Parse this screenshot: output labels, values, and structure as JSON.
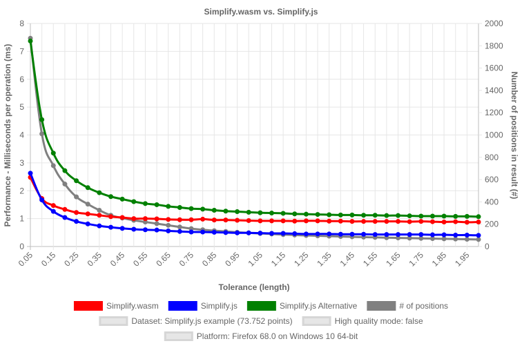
{
  "chart_data": {
    "type": "line",
    "title": "Simplify.wasm vs. Simplify.js",
    "xlabel": "Tolerance (length)",
    "ylabel_left": "Performance - Milliseconds per operation (ms)",
    "ylabel_right": "Number of positions in result (#)",
    "ylim_left": [
      0,
      8
    ],
    "ylim_right": [
      0,
      2000
    ],
    "yticks_left": [
      "0",
      "1",
      "2",
      "3",
      "4",
      "5",
      "6",
      "7",
      "8"
    ],
    "yticks_right": [
      "0",
      "200",
      "400",
      "600",
      "800",
      "1000",
      "1200",
      "1400",
      "1600",
      "1800",
      "2000"
    ],
    "x": [
      0.05,
      0.1,
      0.15,
      0.2,
      0.25,
      0.3,
      0.35,
      0.4,
      0.45,
      0.5,
      0.55,
      0.6,
      0.65,
      0.7,
      0.75,
      0.8,
      0.85,
      0.9,
      0.95,
      1.0,
      1.05,
      1.1,
      1.15,
      1.2,
      1.25,
      1.3,
      1.35,
      1.4,
      1.45,
      1.5,
      1.55,
      1.6,
      1.65,
      1.7,
      1.75,
      1.8,
      1.85,
      1.9,
      1.95,
      2.0
    ],
    "xtick_labels": [
      "0.05",
      "0.15",
      "0.25",
      "0.35",
      "0.45",
      "0.55",
      "0.65",
      "0.75",
      "0.85",
      "0.95",
      "1.05",
      "1.15",
      "1.25",
      "1.35",
      "1.45",
      "1.55",
      "1.65",
      "1.75",
      "1.85",
      "1.95"
    ],
    "grid": true,
    "legend_position": "bottom",
    "series": [
      {
        "name": "Simplify.wasm",
        "color": "#ff0000",
        "axis": "left",
        "values": [
          2.48,
          1.72,
          1.47,
          1.33,
          1.22,
          1.17,
          1.12,
          1.07,
          1.04,
          1.0,
          1.0,
          0.99,
          0.97,
          0.96,
          0.96,
          0.98,
          0.95,
          0.95,
          0.94,
          0.93,
          0.92,
          0.92,
          0.92,
          0.91,
          0.92,
          0.92,
          0.91,
          0.91,
          0.9,
          0.9,
          0.9,
          0.9,
          0.9,
          0.89,
          0.9,
          0.89,
          0.88,
          0.89,
          0.87,
          0.88
        ]
      },
      {
        "name": "Simplify.js",
        "color": "#0000ff",
        "axis": "left",
        "values": [
          2.63,
          1.67,
          1.26,
          1.04,
          0.9,
          0.81,
          0.74,
          0.69,
          0.65,
          0.62,
          0.6,
          0.59,
          0.56,
          0.54,
          0.52,
          0.52,
          0.51,
          0.5,
          0.49,
          0.49,
          0.48,
          0.47,
          0.47,
          0.46,
          0.45,
          0.45,
          0.45,
          0.44,
          0.44,
          0.44,
          0.43,
          0.43,
          0.43,
          0.43,
          0.43,
          0.42,
          0.42,
          0.41,
          0.41,
          0.4
        ]
      },
      {
        "name": "Simplify.js Alternative",
        "color": "#008000",
        "axis": "left",
        "values": [
          7.37,
          4.55,
          3.35,
          2.72,
          2.36,
          2.11,
          1.93,
          1.79,
          1.7,
          1.61,
          1.54,
          1.5,
          1.44,
          1.4,
          1.36,
          1.34,
          1.3,
          1.27,
          1.25,
          1.23,
          1.21,
          1.2,
          1.19,
          1.17,
          1.16,
          1.15,
          1.14,
          1.13,
          1.13,
          1.12,
          1.12,
          1.11,
          1.11,
          1.1,
          1.09,
          1.09,
          1.09,
          1.08,
          1.08,
          1.07
        ]
      },
      {
        "name": "# of positions",
        "color": "#808080",
        "axis": "right",
        "values": [
          1868,
          1010,
          725,
          560,
          445,
          380,
          325,
          280,
          255,
          235,
          220,
          205,
          190,
          175,
          160,
          150,
          142,
          135,
          128,
          122,
          117,
          112,
          107,
          103,
          99,
          96,
          93,
          90,
          87,
          84,
          82,
          79,
          77,
          75,
          73,
          71,
          69,
          67,
          65,
          63
        ]
      }
    ]
  },
  "legend_info": [
    "Dataset: Simplify.js example (73.752 points)",
    "High quality mode: false",
    "Platform: Firefox 68.0 on Windows 10 64-bit"
  ]
}
